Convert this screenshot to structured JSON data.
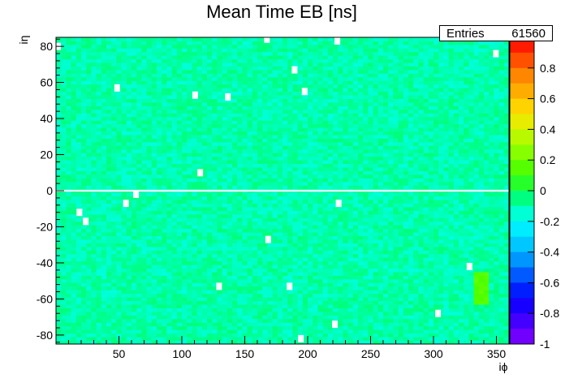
{
  "chart_data": {
    "type": "heatmap",
    "title": "Mean Time EB [ns]",
    "xlabel": "iϕ",
    "ylabel": "iη",
    "x_range": [
      0,
      360
    ],
    "y_range": [
      -85,
      85
    ],
    "x_ticks": [
      50,
      100,
      150,
      200,
      250,
      300,
      350
    ],
    "y_ticks": [
      -80,
      -60,
      -40,
      -20,
      0,
      20,
      40,
      60,
      80
    ],
    "z_range": [
      -1,
      1
    ],
    "z_ticks": [
      "1",
      "0.8",
      "0.6",
      "0.4",
      "0.2",
      "0",
      "-0.2",
      "-0.4",
      "-0.6",
      "-0.8",
      "-1"
    ],
    "typical_value": -0.1,
    "empty_row": 0,
    "empty_cells": [
      [
        166,
        84
      ],
      [
        188,
        67
      ],
      [
        222,
        83
      ],
      [
        348,
        76
      ],
      [
        47,
        57
      ],
      [
        109,
        53
      ],
      [
        135,
        52
      ],
      [
        113,
        10
      ],
      [
        196,
        55
      ],
      [
        0,
        80
      ],
      [
        62,
        -2
      ],
      [
        54,
        -7
      ],
      [
        17,
        -12
      ],
      [
        22,
        -17
      ],
      [
        223,
        -7
      ],
      [
        167,
        -27
      ],
      [
        327,
        -42
      ],
      [
        128,
        -53
      ],
      [
        184,
        -53
      ],
      [
        302,
        -68
      ],
      [
        220,
        -74
      ],
      [
        193,
        -82
      ]
    ],
    "hot_patch": {
      "x": [
        331,
        341
      ],
      "y": [
        -64,
        -45
      ],
      "value": 0.15
    },
    "stats": {
      "label": "Entries",
      "value": "61560"
    }
  }
}
